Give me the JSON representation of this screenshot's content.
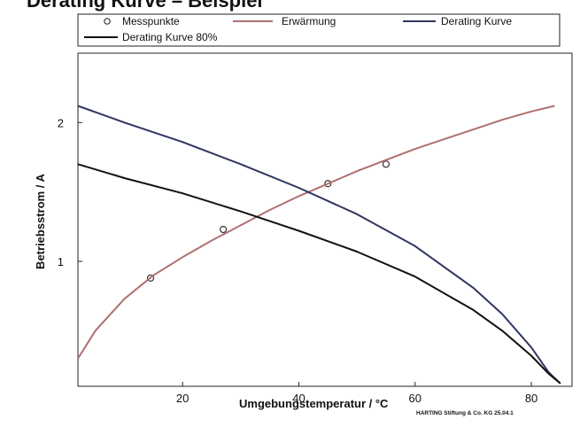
{
  "chart_data": {
    "type": "line",
    "title": "",
    "xlabel": "Umgebungstemperatur / °C",
    "ylabel": "Betriebsstrom / A",
    "xlim": [
      2,
      87
    ],
    "ylim": [
      0.1,
      2.5
    ],
    "xticks": [
      20,
      40,
      60,
      80
    ],
    "yticks": [
      1,
      2
    ],
    "grid": false,
    "legend_position": "top",
    "legend": {
      "messpunkte": "Messpunkte",
      "erwaermung": "Erwärmung",
      "derating": "Derating Kurve",
      "derating80": "Derating Kurve 80%"
    },
    "series": [
      {
        "name": "Messpunkte",
        "kind": "scatter",
        "color": "#333333",
        "x": [
          14.5,
          27,
          45,
          55
        ],
        "y": [
          0.88,
          1.23,
          1.56,
          1.7
        ]
      },
      {
        "name": "Erwärmung",
        "kind": "line",
        "color": "#b07070",
        "x": [
          2,
          5,
          10,
          15,
          20,
          25,
          30,
          35,
          40,
          45,
          50,
          55,
          60,
          65,
          70,
          75,
          80,
          84
        ],
        "y": [
          0.3,
          0.5,
          0.73,
          0.9,
          1.03,
          1.15,
          1.26,
          1.37,
          1.47,
          1.56,
          1.65,
          1.73,
          1.81,
          1.88,
          1.95,
          2.02,
          2.08,
          2.12
        ]
      },
      {
        "name": "Derating Kurve",
        "kind": "line",
        "color": "#2e3560",
        "x": [
          2,
          10,
          20,
          30,
          40,
          50,
          60,
          70,
          75,
          80,
          83,
          85
        ],
        "y": [
          2.12,
          2.0,
          1.86,
          1.7,
          1.53,
          1.34,
          1.11,
          0.81,
          0.62,
          0.38,
          0.2,
          0.12
        ]
      },
      {
        "name": "Derating Kurve 80%",
        "kind": "line",
        "color": "#111111",
        "x": [
          2,
          10,
          20,
          30,
          40,
          50,
          60,
          70,
          75,
          80,
          83,
          85
        ],
        "y": [
          1.7,
          1.6,
          1.49,
          1.36,
          1.22,
          1.07,
          0.89,
          0.65,
          0.5,
          0.32,
          0.19,
          0.12
        ]
      }
    ]
  },
  "footer": {
    "credit": "HARTING Stiftung & Co. KG 25.04.1"
  },
  "header": {
    "title_partial": "Derating Kurve – Beispiel"
  }
}
